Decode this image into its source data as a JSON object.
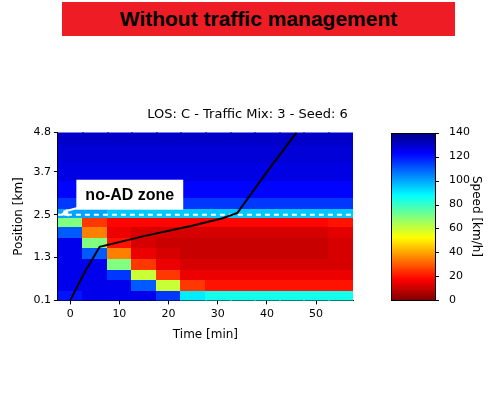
{
  "header": {
    "text": "Without traffic management"
  },
  "chart_data": {
    "type": "heatmap",
    "title": "LOS: C - Traffic Mix: 3 - Seed: 6",
    "x_label": "Time [min]",
    "y_label": "Position [km]",
    "xlim": [
      -2.5,
      57.5
    ],
    "xticks": [
      0,
      10,
      20,
      30,
      40,
      50
    ],
    "ylim": [
      0.1,
      4.8
    ],
    "yticks": [
      0.1,
      1.3,
      2.5,
      3.7,
      4.8
    ],
    "x_edges": [
      -2.5,
      2.5,
      7.5,
      12.5,
      17.5,
      22.5,
      27.5,
      32.5,
      37.5,
      42.5,
      47.5,
      52.5,
      57.5
    ],
    "y_edges": [
      0.1,
      0.4,
      0.7,
      1.0,
      1.3,
      1.6,
      1.9,
      2.2,
      2.45,
      2.7,
      3.0,
      3.5,
      4.0,
      4.5,
      4.8
    ],
    "cells": [
      [
        120,
        125,
        125,
        125,
        115,
        90,
        85,
        85,
        85,
        85,
        85,
        85
      ],
      [
        125,
        125,
        125,
        110,
        60,
        25,
        20,
        20,
        20,
        20,
        20,
        20
      ],
      [
        125,
        125,
        115,
        60,
        25,
        15,
        15,
        15,
        15,
        15,
        15,
        15
      ],
      [
        125,
        125,
        70,
        25,
        15,
        12,
        12,
        12,
        12,
        12,
        12,
        12
      ],
      [
        125,
        110,
        35,
        15,
        12,
        10,
        10,
        10,
        10,
        10,
        10,
        12
      ],
      [
        125,
        70,
        20,
        12,
        10,
        10,
        10,
        10,
        10,
        10,
        10,
        12
      ],
      [
        110,
        35,
        15,
        12,
        12,
        12,
        12,
        12,
        12,
        12,
        12,
        14
      ],
      [
        70,
        25,
        18,
        18,
        18,
        18,
        18,
        18,
        18,
        18,
        18,
        20
      ],
      [
        100,
        100,
        95,
        95,
        95,
        95,
        95,
        95,
        95,
        95,
        95,
        95
      ],
      [
        115,
        115,
        115,
        115,
        115,
        115,
        115,
        115,
        115,
        115,
        115,
        115
      ],
      [
        122,
        122,
        122,
        122,
        122,
        122,
        122,
        122,
        122,
        122,
        122,
        122
      ],
      [
        126,
        126,
        126,
        126,
        126,
        126,
        126,
        126,
        126,
        126,
        126,
        126
      ],
      [
        128,
        128,
        128,
        128,
        128,
        128,
        128,
        128,
        128,
        128,
        128,
        128
      ],
      [
        130,
        130,
        130,
        130,
        130,
        130,
        130,
        130,
        130,
        130,
        130,
        130
      ]
    ],
    "colorbar": {
      "label": "Speed [km/h]",
      "range": [
        0,
        140
      ],
      "ticks": [
        0,
        20,
        40,
        60,
        80,
        100,
        120,
        140
      ]
    },
    "series": [
      {
        "type": "line",
        "color": "#000000",
        "x": [
          0,
          3,
          6,
          15,
          25,
          31,
          34,
          40,
          46
        ],
        "values": [
          0.1,
          0.9,
          1.6,
          1.9,
          2.2,
          2.4,
          2.55,
          3.7,
          4.8
        ]
      }
    ],
    "reference_lines": [
      {
        "y": 2.5,
        "line_style": "dashed",
        "color": "#ffffff"
      }
    ],
    "annotations": [
      {
        "text": "no-AD zone",
        "x": -2,
        "y": 2.5
      }
    ]
  }
}
